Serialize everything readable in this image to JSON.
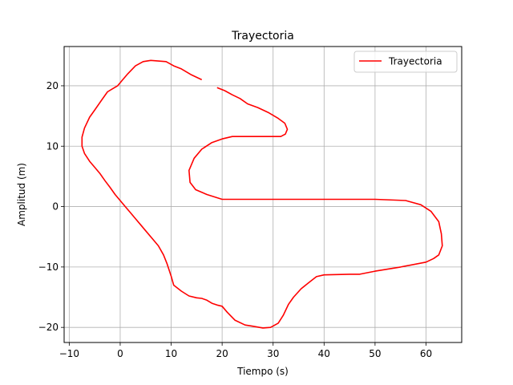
{
  "chart_data": {
    "type": "line",
    "title": "Trayectoria",
    "xlabel": "Tiempo (s)",
    "ylabel": "Amplitud (m)",
    "xlim": [
      -11,
      67
    ],
    "ylim": [
      -22.5,
      26.5
    ],
    "xticks": [
      -10,
      0,
      10,
      20,
      30,
      40,
      50,
      60
    ],
    "yticks": [
      -20,
      -10,
      0,
      10,
      20
    ],
    "xtick_labels": [
      "−10",
      "0",
      "10",
      "20",
      "30",
      "40",
      "50",
      "60"
    ],
    "ytick_labels": [
      "−20",
      "−10",
      "0",
      "10",
      "20"
    ],
    "grid": true,
    "legend": {
      "position": "top-right",
      "entries": [
        "Trayectoria"
      ]
    },
    "series": [
      {
        "name": "Trayectoria",
        "color": "#ff0000",
        "segments": [
          [
            [
              19,
              19.7
            ],
            [
              20.5,
              19.2
            ],
            [
              22,
              18.5
            ],
            [
              23.5,
              17.9
            ],
            [
              25,
              17.0
            ],
            [
              27,
              16.4
            ],
            [
              29,
              15.6
            ],
            [
              31,
              14.6
            ],
            [
              32.3,
              13.8
            ],
            [
              32.8,
              12.8
            ],
            [
              32.4,
              12.0
            ],
            [
              31.5,
              11.6
            ],
            [
              28,
              11.6
            ],
            [
              25,
              11.6
            ],
            [
              22,
              11.6
            ],
            [
              20,
              11.2
            ],
            [
              18,
              10.6
            ],
            [
              16,
              9.5
            ],
            [
              14.5,
              8.0
            ],
            [
              13.5,
              6.0
            ],
            [
              13.7,
              4.0
            ],
            [
              14.8,
              2.8
            ],
            [
              17,
              2.0
            ],
            [
              20,
              1.2
            ],
            [
              30,
              1.2
            ],
            [
              40,
              1.2
            ],
            [
              50,
              1.2
            ],
            [
              56,
              1.0
            ],
            [
              59,
              0.3
            ],
            [
              61,
              -0.8
            ],
            [
              62.5,
              -2.5
            ],
            [
              63,
              -4.5
            ],
            [
              63.2,
              -6.5
            ],
            [
              62.5,
              -8.0
            ],
            [
              61.5,
              -8.6
            ],
            [
              60,
              -9.2
            ],
            [
              55,
              -10.0
            ],
            [
              50,
              -10.7
            ],
            [
              47,
              -11.2
            ],
            [
              45,
              -11.2
            ],
            [
              40,
              -11.3
            ],
            [
              38.5,
              -11.6
            ],
            [
              37,
              -12.6
            ],
            [
              35.5,
              -13.6
            ],
            [
              34,
              -15.0
            ],
            [
              33,
              -16.2
            ],
            [
              32,
              -18.0
            ],
            [
              31,
              -19.3
            ],
            [
              29.5,
              -20.0
            ],
            [
              28,
              -20.1
            ],
            [
              26,
              -19.8
            ],
            [
              24.5,
              -19.6
            ],
            [
              22.5,
              -18.8
            ],
            [
              21,
              -17.5
            ],
            [
              20,
              -16.5
            ],
            [
              19,
              -16.3
            ],
            [
              18,
              -16.0
            ],
            [
              17,
              -15.5
            ],
            [
              16,
              -15.2
            ],
            [
              15,
              -15.1
            ],
            [
              13.5,
              -14.8
            ],
            [
              12,
              -14.0
            ],
            [
              10.5,
              -13.0
            ],
            [
              10,
              -11.5
            ],
            [
              9.2,
              -9.5
            ],
            [
              8.5,
              -8.0
            ],
            [
              7.5,
              -6.5
            ],
            [
              6.5,
              -5.5
            ],
            [
              5,
              -4.0
            ],
            [
              4,
              -3.0
            ],
            [
              3,
              -2.0
            ],
            [
              2,
              -1.0
            ],
            [
              1,
              0.0
            ],
            [
              0,
              1.0
            ],
            [
              -1,
              2.0
            ],
            [
              -2,
              3.2
            ],
            [
              -3,
              4.3
            ],
            [
              -4,
              5.5
            ],
            [
              -5,
              6.5
            ],
            [
              -6,
              7.5
            ],
            [
              -7,
              8.8
            ],
            [
              -7.5,
              10.0
            ],
            [
              -7.5,
              11.5
            ],
            [
              -7,
              13.0
            ],
            [
              -6,
              14.8
            ],
            [
              -5,
              16.0
            ],
            [
              -3.5,
              17.8
            ],
            [
              -2.5,
              19.0
            ],
            [
              -1.5,
              19.5
            ],
            [
              -0.5,
              20.0
            ],
            [
              0.5,
              21.0
            ],
            [
              1.5,
              22.0
            ],
            [
              3,
              23.3
            ],
            [
              4.5,
              24.0
            ],
            [
              6,
              24.2
            ],
            [
              7.5,
              24.1
            ],
            [
              9,
              24.0
            ],
            [
              10.5,
              23.3
            ],
            [
              12,
              22.8
            ],
            [
              14,
              21.8
            ],
            [
              16,
              21.0
            ]
          ]
        ]
      }
    ]
  }
}
